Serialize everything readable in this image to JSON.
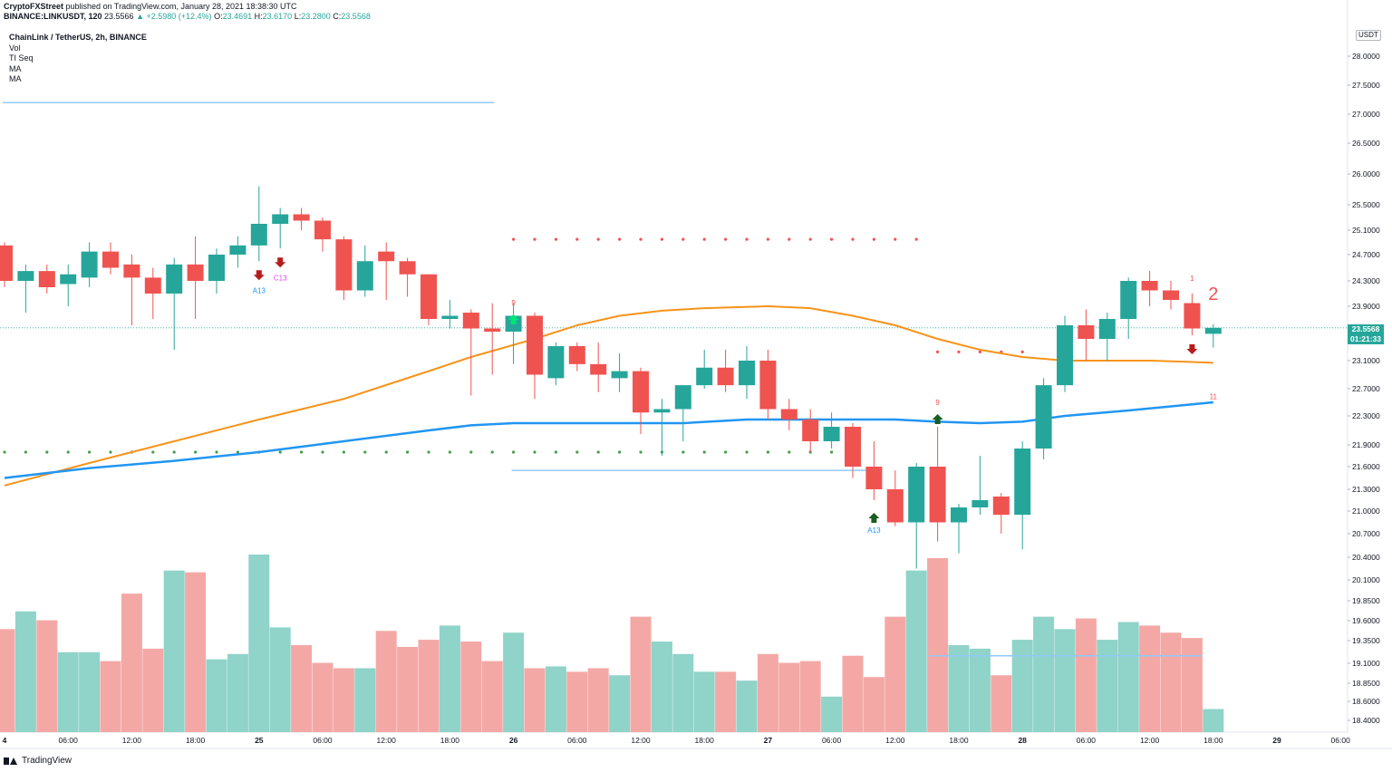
{
  "header": {
    "publisher": "CryptoFXStreet",
    "published_text": "published on TradingView.com, January 28, 2021 18:38:30 UTC",
    "symbol": "BINANCE:LINKUSDT, 120",
    "last": "23.5566",
    "change": "▲ +2.5980 (+12.4%)",
    "ohlc": {
      "O": "23.4691",
      "H": "23.6170",
      "L": "23.2800",
      "C": "23.5568"
    }
  },
  "legend": {
    "title": "ChainLink / TetherUS, 2h, BINANCE",
    "items": [
      "Vol",
      "TI Seq",
      "MA",
      "MA"
    ]
  },
  "price_axis": {
    "currency": "USDT",
    "current_price": "23.5568",
    "countdown": "01:21:33"
  },
  "footer": {
    "brand": "TradingView"
  },
  "colors": {
    "up": "#26a69a",
    "down": "#ef5350",
    "ma_fast": "#f7931a",
    "ma_slow": "#2196f3",
    "vol_up": "#8fd3c9",
    "vol_down": "#f4a8a6"
  },
  "chart_data": {
    "type": "candlestick",
    "title": "ChainLink / TetherUS, 2h, BINANCE",
    "ylim": [
      18.2,
      28.6
    ],
    "y_ticks": [
      "28.0000",
      "27.5000",
      "27.0000",
      "26.5000",
      "26.0000",
      "25.5000",
      "25.1000",
      "24.7000",
      "24.3000",
      "23.9000",
      "23.5000",
      "23.1000",
      "22.7000",
      "22.3000",
      "21.9000",
      "21.6000",
      "21.3000",
      "21.0000",
      "20.7000",
      "20.4000",
      "20.1000",
      "19.8500",
      "19.6000",
      "19.3500",
      "19.1000",
      "18.8500",
      "18.6000",
      "18.4000"
    ],
    "x_ticks": [
      {
        "label": "4",
        "i": 0
      },
      {
        "label": "06:00",
        "i": 3
      },
      {
        "label": "12:00",
        "i": 6
      },
      {
        "label": "18:00",
        "i": 9
      },
      {
        "label": "25",
        "i": 12
      },
      {
        "label": "06:00",
        "i": 15
      },
      {
        "label": "12:00",
        "i": 18
      },
      {
        "label": "18:00",
        "i": 21
      },
      {
        "label": "26",
        "i": 24
      },
      {
        "label": "06:00",
        "i": 27
      },
      {
        "label": "12:00",
        "i": 30
      },
      {
        "label": "18:00",
        "i": 33
      },
      {
        "label": "27",
        "i": 36
      },
      {
        "label": "06:00",
        "i": 39
      },
      {
        "label": "12:00",
        "i": 42
      },
      {
        "label": "18:00",
        "i": 45
      },
      {
        "label": "28",
        "i": 48
      },
      {
        "label": "06:00",
        "i": 51
      },
      {
        "label": "12:00",
        "i": 54
      },
      {
        "label": "18:00",
        "i": 57
      },
      {
        "label": "29",
        "i": 60
      },
      {
        "label": "06:00",
        "i": 63
      }
    ],
    "candles": [
      {
        "o": 24.85,
        "h": 24.9,
        "l": 24.2,
        "c": 24.3
      },
      {
        "o": 24.3,
        "h": 24.55,
        "l": 23.8,
        "c": 24.45
      },
      {
        "o": 24.45,
        "h": 24.55,
        "l": 24.1,
        "c": 24.2
      },
      {
        "o": 24.25,
        "h": 24.55,
        "l": 23.9,
        "c": 24.4
      },
      {
        "o": 24.35,
        "h": 24.9,
        "l": 24.2,
        "c": 24.75
      },
      {
        "o": 24.75,
        "h": 24.9,
        "l": 24.4,
        "c": 24.5
      },
      {
        "o": 24.55,
        "h": 24.7,
        "l": 23.6,
        "c": 24.35
      },
      {
        "o": 24.35,
        "h": 24.5,
        "l": 23.7,
        "c": 24.1
      },
      {
        "o": 24.1,
        "h": 24.65,
        "l": 23.25,
        "c": 24.55
      },
      {
        "o": 24.55,
        "h": 25.0,
        "l": 23.7,
        "c": 24.3
      },
      {
        "o": 24.3,
        "h": 24.8,
        "l": 24.1,
        "c": 24.7
      },
      {
        "o": 24.7,
        "h": 25.0,
        "l": 24.5,
        "c": 24.85
      },
      {
        "o": 24.85,
        "h": 25.8,
        "l": 24.6,
        "c": 25.2
      },
      {
        "o": 25.2,
        "h": 25.45,
        "l": 24.8,
        "c": 25.35
      },
      {
        "o": 25.35,
        "h": 25.45,
        "l": 25.1,
        "c": 25.25
      },
      {
        "o": 25.25,
        "h": 25.3,
        "l": 24.75,
        "c": 24.95
      },
      {
        "o": 24.95,
        "h": 25.0,
        "l": 24.0,
        "c": 24.15
      },
      {
        "o": 24.15,
        "h": 24.85,
        "l": 24.05,
        "c": 24.6
      },
      {
        "o": 24.75,
        "h": 24.9,
        "l": 24.0,
        "c": 24.6
      },
      {
        "o": 24.6,
        "h": 24.65,
        "l": 24.05,
        "c": 24.4
      },
      {
        "o": 24.4,
        "h": 24.4,
        "l": 23.6,
        "c": 23.7
      },
      {
        "o": 23.7,
        "h": 24.0,
        "l": 23.55,
        "c": 23.75
      },
      {
        "o": 23.8,
        "h": 23.85,
        "l": 22.6,
        "c": 23.55
      },
      {
        "o": 23.55,
        "h": 23.95,
        "l": 22.9,
        "c": 23.5
      },
      {
        "o": 23.5,
        "h": 23.95,
        "l": 23.05,
        "c": 23.75
      },
      {
        "o": 23.75,
        "h": 23.8,
        "l": 22.55,
        "c": 22.9
      },
      {
        "o": 22.85,
        "h": 23.35,
        "l": 22.75,
        "c": 23.3
      },
      {
        "o": 23.3,
        "h": 23.35,
        "l": 22.95,
        "c": 23.05
      },
      {
        "o": 23.05,
        "h": 23.35,
        "l": 22.65,
        "c": 22.9
      },
      {
        "o": 22.85,
        "h": 23.2,
        "l": 22.65,
        "c": 22.95
      },
      {
        "o": 22.95,
        "h": 23.0,
        "l": 22.05,
        "c": 22.35
      },
      {
        "o": 22.35,
        "h": 22.55,
        "l": 21.75,
        "c": 22.4
      },
      {
        "o": 22.4,
        "h": 22.75,
        "l": 21.95,
        "c": 22.75
      },
      {
        "o": 22.75,
        "h": 23.25,
        "l": 22.7,
        "c": 23.0
      },
      {
        "o": 23.0,
        "h": 23.25,
        "l": 22.65,
        "c": 22.75
      },
      {
        "o": 22.75,
        "h": 23.3,
        "l": 22.55,
        "c": 23.1
      },
      {
        "o": 23.1,
        "h": 23.25,
        "l": 22.25,
        "c": 22.4
      },
      {
        "o": 22.4,
        "h": 22.55,
        "l": 22.1,
        "c": 22.25
      },
      {
        "o": 22.25,
        "h": 22.4,
        "l": 21.8,
        "c": 21.95
      },
      {
        "o": 21.95,
        "h": 22.35,
        "l": 21.85,
        "c": 22.15
      },
      {
        "o": 22.15,
        "h": 22.2,
        "l": 21.45,
        "c": 21.6
      },
      {
        "o": 21.6,
        "h": 21.95,
        "l": 21.15,
        "c": 21.3
      },
      {
        "o": 21.3,
        "h": 21.55,
        "l": 20.8,
        "c": 20.85
      },
      {
        "o": 20.85,
        "h": 21.65,
        "l": 20.25,
        "c": 21.6
      },
      {
        "o": 21.6,
        "h": 22.15,
        "l": 20.6,
        "c": 20.85
      },
      {
        "o": 20.85,
        "h": 21.1,
        "l": 20.45,
        "c": 21.05
      },
      {
        "o": 21.05,
        "h": 21.75,
        "l": 20.95,
        "c": 21.15
      },
      {
        "o": 21.2,
        "h": 21.25,
        "l": 20.7,
        "c": 20.95
      },
      {
        "o": 20.95,
        "h": 21.95,
        "l": 20.5,
        "c": 21.85
      },
      {
        "o": 21.85,
        "h": 22.85,
        "l": 21.7,
        "c": 22.75
      },
      {
        "o": 22.75,
        "h": 23.75,
        "l": 22.65,
        "c": 23.6
      },
      {
        "o": 23.6,
        "h": 23.85,
        "l": 23.1,
        "c": 23.4
      },
      {
        "o": 23.4,
        "h": 23.8,
        "l": 23.1,
        "c": 23.7
      },
      {
        "o": 23.7,
        "h": 24.35,
        "l": 23.4,
        "c": 24.3
      },
      {
        "o": 24.3,
        "h": 24.45,
        "l": 23.9,
        "c": 24.15
      },
      {
        "o": 24.15,
        "h": 24.3,
        "l": 23.85,
        "c": 24.0
      },
      {
        "o": 23.95,
        "h": 24.1,
        "l": 23.45,
        "c": 23.55
      },
      {
        "o": 23.47,
        "h": 23.62,
        "l": 23.28,
        "c": 23.56
      }
    ],
    "volumes": [
      0.58,
      0.68,
      0.63,
      0.45,
      0.45,
      0.4,
      0.78,
      0.47,
      0.91,
      0.9,
      0.41,
      0.44,
      1.0,
      0.59,
      0.49,
      0.39,
      0.36,
      0.36,
      0.57,
      0.48,
      0.52,
      0.6,
      0.51,
      0.4,
      0.56,
      0.36,
      0.37,
      0.34,
      0.36,
      0.32,
      0.65,
      0.51,
      0.44,
      0.34,
      0.34,
      0.29,
      0.44,
      0.39,
      0.4,
      0.2,
      0.43,
      0.31,
      0.65,
      0.91,
      0.98,
      0.49,
      0.47,
      0.32,
      0.52,
      0.65,
      0.58,
      0.64,
      0.52,
      0.62,
      0.6,
      0.56,
      0.53,
      0.13
    ],
    "ma_fast": [
      [
        0,
        21.35
      ],
      [
        4,
        21.65
      ],
      [
        8,
        21.95
      ],
      [
        12,
        22.25
      ],
      [
        16,
        22.55
      ],
      [
        20,
        22.95
      ],
      [
        22,
        23.15
      ],
      [
        25,
        23.4
      ],
      [
        27,
        23.6
      ],
      [
        29,
        23.75
      ],
      [
        31,
        23.83
      ],
      [
        33,
        23.87
      ],
      [
        36,
        23.9
      ],
      [
        38,
        23.87
      ],
      [
        40,
        23.75
      ],
      [
        42,
        23.6
      ],
      [
        44,
        23.4
      ],
      [
        46,
        23.25
      ],
      [
        48,
        23.15
      ],
      [
        50,
        23.1
      ],
      [
        52,
        23.1
      ],
      [
        54,
        23.1
      ],
      [
        56,
        23.08
      ],
      [
        57,
        23.07
      ]
    ],
    "ma_slow": [
      [
        0,
        21.45
      ],
      [
        4,
        21.58
      ],
      [
        8,
        21.68
      ],
      [
        12,
        21.8
      ],
      [
        16,
        21.95
      ],
      [
        20,
        22.1
      ],
      [
        22,
        22.17
      ],
      [
        24,
        22.2
      ],
      [
        26,
        22.2
      ],
      [
        28,
        22.2
      ],
      [
        30,
        22.2
      ],
      [
        32,
        22.2
      ],
      [
        35,
        22.25
      ],
      [
        38,
        22.25
      ],
      [
        40,
        22.25
      ],
      [
        42,
        22.25
      ],
      [
        44,
        22.22
      ],
      [
        46,
        22.2
      ],
      [
        48,
        22.22
      ],
      [
        50,
        22.3
      ],
      [
        53,
        22.38
      ],
      [
        57,
        22.5
      ]
    ],
    "levels": [
      {
        "price": 27.2,
        "from": 0,
        "to": 23,
        "color": "#90caf9"
      },
      {
        "price": 21.55,
        "from": 24,
        "to": 41,
        "color": "#90caf9"
      }
    ],
    "resistance_dots": {
      "price": 24.95,
      "from": 24,
      "to": 43,
      "color": "#ef5350"
    },
    "resistance_dots_2": {
      "price": 23.22,
      "from": 44,
      "to": 48,
      "color": "#ef5350"
    },
    "support_dots": {
      "price": 21.8,
      "from": 0,
      "to": 39,
      "color": "#43a047"
    },
    "vol_ma_line": {
      "value": 0.45,
      "from": 44,
      "to": 56,
      "color": "#90caf9"
    },
    "signals": [
      {
        "i": 12,
        "type": "down",
        "label": "A13",
        "labelColor": "#2196f3"
      },
      {
        "i": 13,
        "type": "down",
        "label": "C13",
        "labelColor": "#e040fb"
      },
      {
        "i": 24,
        "type": "up-green",
        "label": "9",
        "labelColor": "#ef5350"
      },
      {
        "i": 41,
        "type": "up",
        "label": "A13",
        "labelColor": "#2196f3"
      },
      {
        "i": 44,
        "type": "up",
        "label": "9",
        "labelColor": "#ef5350"
      },
      {
        "i": 56,
        "type": "down",
        "label": "1",
        "labelColor": "#ef5350"
      }
    ],
    "annotations": [
      {
        "i": 57,
        "price": 24.0,
        "text": "2",
        "color": "#ef5350"
      },
      {
        "i": 57,
        "price": 22.55,
        "text": "11",
        "color": "#ef5350"
      }
    ]
  }
}
